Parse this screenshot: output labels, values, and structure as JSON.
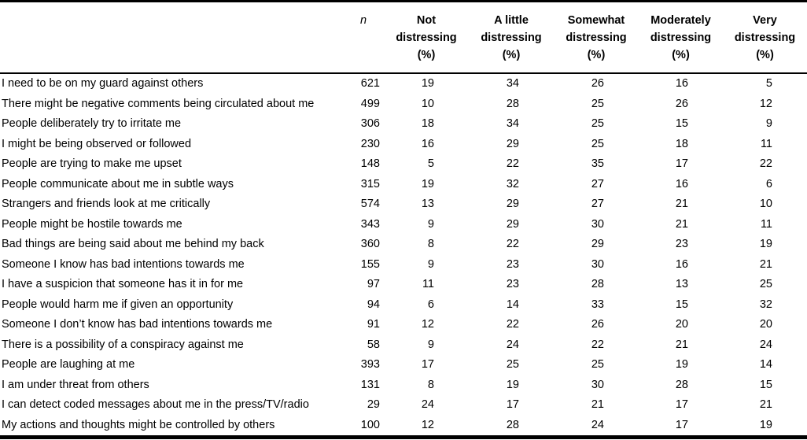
{
  "table": {
    "columns": [
      {
        "id": "item",
        "label": ""
      },
      {
        "id": "n",
        "label": "n"
      },
      {
        "id": "not-distressing",
        "label": "Not\ndistressing\n(%)"
      },
      {
        "id": "a-little-distressing",
        "label": "A little\ndistressing\n(%)"
      },
      {
        "id": "somewhat-distressing",
        "label": "Somewhat\ndistressing\n(%)"
      },
      {
        "id": "moderately-distressing",
        "label": "Moderately\ndistressing\n(%)"
      },
      {
        "id": "very-distressing",
        "label": "Very\ndistressing\n(%)"
      }
    ],
    "rows": [
      {
        "label": "I need to be on my guard against others",
        "n": "621",
        "values": [
          "19",
          "34",
          "26",
          "16",
          "5"
        ]
      },
      {
        "label": "There might be negative comments being circulated about me",
        "n": "499",
        "values": [
          "10",
          "28",
          "25",
          "26",
          "12"
        ]
      },
      {
        "label": "People deliberately try to irritate me",
        "n": "306",
        "values": [
          "18",
          "34",
          "25",
          "15",
          "9"
        ]
      },
      {
        "label": "I might be being observed or followed",
        "n": "230",
        "values": [
          "16",
          "29",
          "25",
          "18",
          "11"
        ]
      },
      {
        "label": "People are trying to make me upset",
        "n": "148",
        "values": [
          "5",
          "22",
          "35",
          "17",
          "22"
        ]
      },
      {
        "label": "People communicate about me in subtle ways",
        "n": "315",
        "values": [
          "19",
          "32",
          "27",
          "16",
          "6"
        ]
      },
      {
        "label": "Strangers and friends look at me critically",
        "n": "574",
        "values": [
          "13",
          "29",
          "27",
          "21",
          "10"
        ]
      },
      {
        "label": "People might be hostile towards me",
        "n": "343",
        "values": [
          "9",
          "29",
          "30",
          "21",
          "11"
        ]
      },
      {
        "label": "Bad things are being said about me behind my back",
        "n": "360",
        "values": [
          "8",
          "22",
          "29",
          "23",
          "19"
        ]
      },
      {
        "label": "Someone I know has bad intentions towards me",
        "n": "155",
        "values": [
          "9",
          "23",
          "30",
          "16",
          "21"
        ]
      },
      {
        "label": "I have a suspicion that someone has it in for me",
        "n": "97",
        "values": [
          "11",
          "23",
          "28",
          "13",
          "25"
        ]
      },
      {
        "label": "People would harm me if given an opportunity",
        "n": "94",
        "values": [
          "6",
          "14",
          "33",
          "15",
          "32"
        ]
      },
      {
        "label": "Someone I don’t know has bad intentions towards me",
        "n": "91",
        "values": [
          "12",
          "22",
          "26",
          "20",
          "20"
        ]
      },
      {
        "label": "There is a possibility of a conspiracy against me",
        "n": "58",
        "values": [
          "9",
          "24",
          "22",
          "21",
          "24"
        ]
      },
      {
        "label": "People are laughing at me",
        "n": "393",
        "values": [
          "17",
          "25",
          "25",
          "19",
          "14"
        ]
      },
      {
        "label": "I am under threat from others",
        "n": "131",
        "values": [
          "8",
          "19",
          "30",
          "28",
          "15"
        ]
      },
      {
        "label": "I can detect coded messages about me in the press/TV/radio",
        "n": "29",
        "values": [
          "24",
          "17",
          "21",
          "17",
          "21"
        ]
      },
      {
        "label": "My actions and thoughts might be controlled by others",
        "n": "100",
        "values": [
          "12",
          "28",
          "24",
          "17",
          "19"
        ]
      }
    ]
  }
}
